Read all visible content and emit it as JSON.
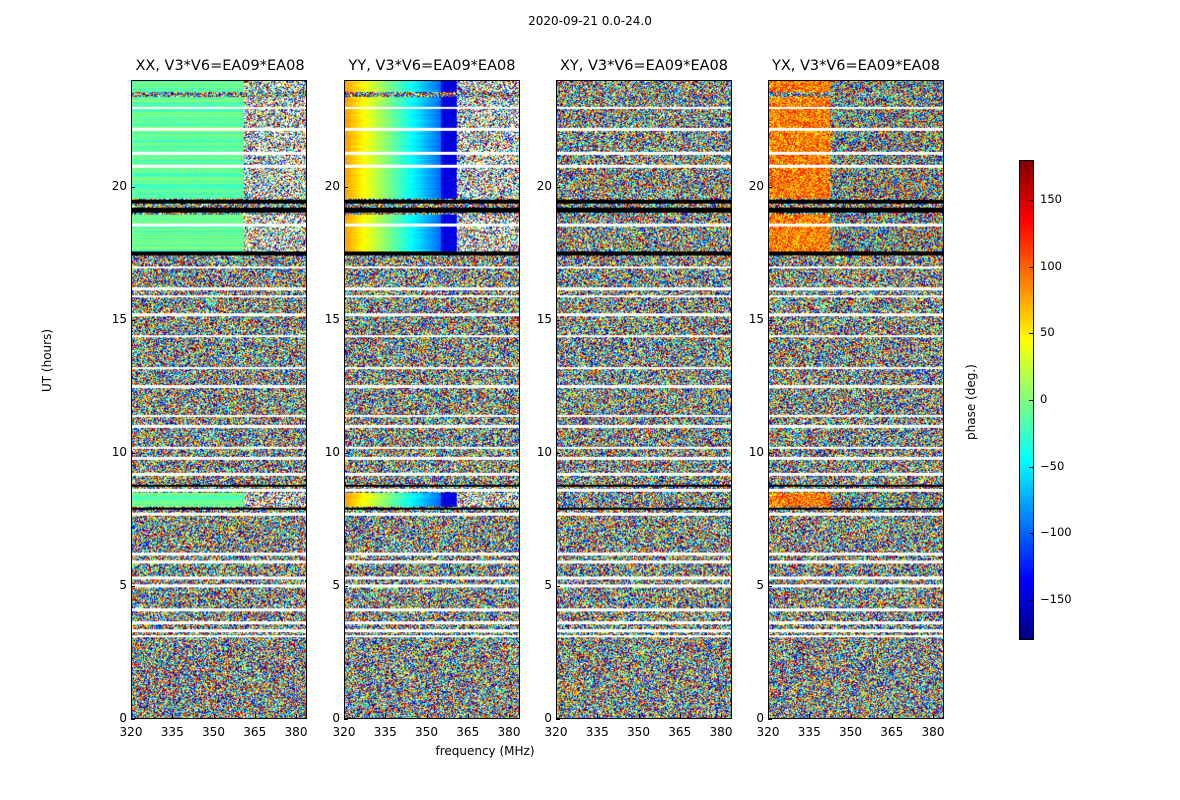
{
  "chart_data": {
    "type": "heatmap",
    "title": "2020-09-21 0.0-24.0",
    "ylabel": "UT (hours)",
    "xlabel": "frequency (MHz)",
    "xlim": [
      320,
      384
    ],
    "ylim": [
      0,
      24
    ],
    "xticks": [
      "320",
      "335",
      "350",
      "365",
      "380"
    ],
    "yticks": [
      "0",
      "5",
      "10",
      "15",
      "20"
    ],
    "colorbar": {
      "label": "phase (deg.)",
      "range": [
        -180,
        180
      ],
      "ticks": [
        "150",
        "100",
        "50",
        "0",
        "−50",
        "−100",
        "−150"
      ],
      "colormap": "jet"
    },
    "panels": [
      {
        "title": "XX, V3*V6=EA09*EA08",
        "coherent_band": "uniform"
      },
      {
        "title": "YY, V3*V6=EA09*EA08",
        "coherent_band": "gradient"
      },
      {
        "title": "XY, V3*V6=EA09*EA08",
        "coherent_band": "none"
      },
      {
        "title": "YX, V3*V6=EA09*EA08",
        "coherent_band": "weak"
      }
    ]
  }
}
